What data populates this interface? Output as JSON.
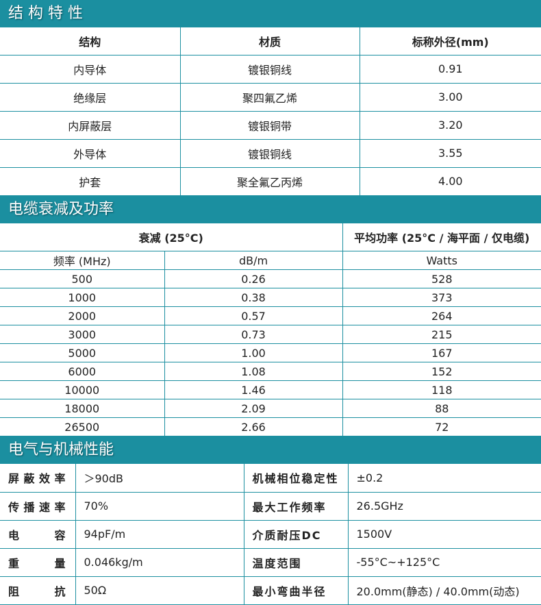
{
  "structure": {
    "title": "结 构 特 性",
    "headers": [
      "结构",
      "材质",
      "标称外径(mm)"
    ],
    "rows": [
      [
        "内导体",
        "镀银铜线",
        "0.91"
      ],
      [
        "绝缘层",
        "聚四氟乙烯",
        "3.00"
      ],
      [
        "内屏蔽层",
        "镀银铜带",
        "3.20"
      ],
      [
        "外导体",
        "镀银铜线",
        "3.55"
      ],
      [
        "护套",
        "聚全氟乙丙烯",
        "4.00"
      ]
    ]
  },
  "attenuation": {
    "title": "电缆衰减及功率",
    "header_att": "衰减 (25°C)",
    "header_power": "平均功率 (25°C / 海平面 / 仅电缆)",
    "sub": [
      "频率 (MHz)",
      "dB/m",
      "Watts"
    ],
    "rows": [
      [
        "500",
        "0.26",
        "528"
      ],
      [
        "1000",
        "0.38",
        "373"
      ],
      [
        "2000",
        "0.57",
        "264"
      ],
      [
        "3000",
        "0.73",
        "215"
      ],
      [
        "5000",
        "1.00",
        "167"
      ],
      [
        "6000",
        "1.08",
        "152"
      ],
      [
        "10000",
        "1.46",
        "118"
      ],
      [
        "18000",
        "2.09",
        "88"
      ],
      [
        "26500",
        "2.66",
        "72"
      ]
    ]
  },
  "electrical": {
    "title": "电气与机械性能",
    "rows": [
      [
        "屏蔽效率",
        "＞90dB",
        "机械相位稳定性",
        "±0.2"
      ],
      [
        "传播速率",
        "70%",
        "最大工作频率",
        "26.5GHz"
      ],
      [
        "电容",
        "94pF/m",
        "介质耐压DC",
        "1500V"
      ],
      [
        "重量",
        "0.046kg/m",
        "温度范围",
        "-55°C~+125°C"
      ],
      [
        "阻抗",
        "50Ω",
        "最小弯曲半径",
        "20.0mm(静态) / 40.0mm(动态)"
      ]
    ]
  },
  "colors": {
    "accent": "#1b8fa0"
  }
}
